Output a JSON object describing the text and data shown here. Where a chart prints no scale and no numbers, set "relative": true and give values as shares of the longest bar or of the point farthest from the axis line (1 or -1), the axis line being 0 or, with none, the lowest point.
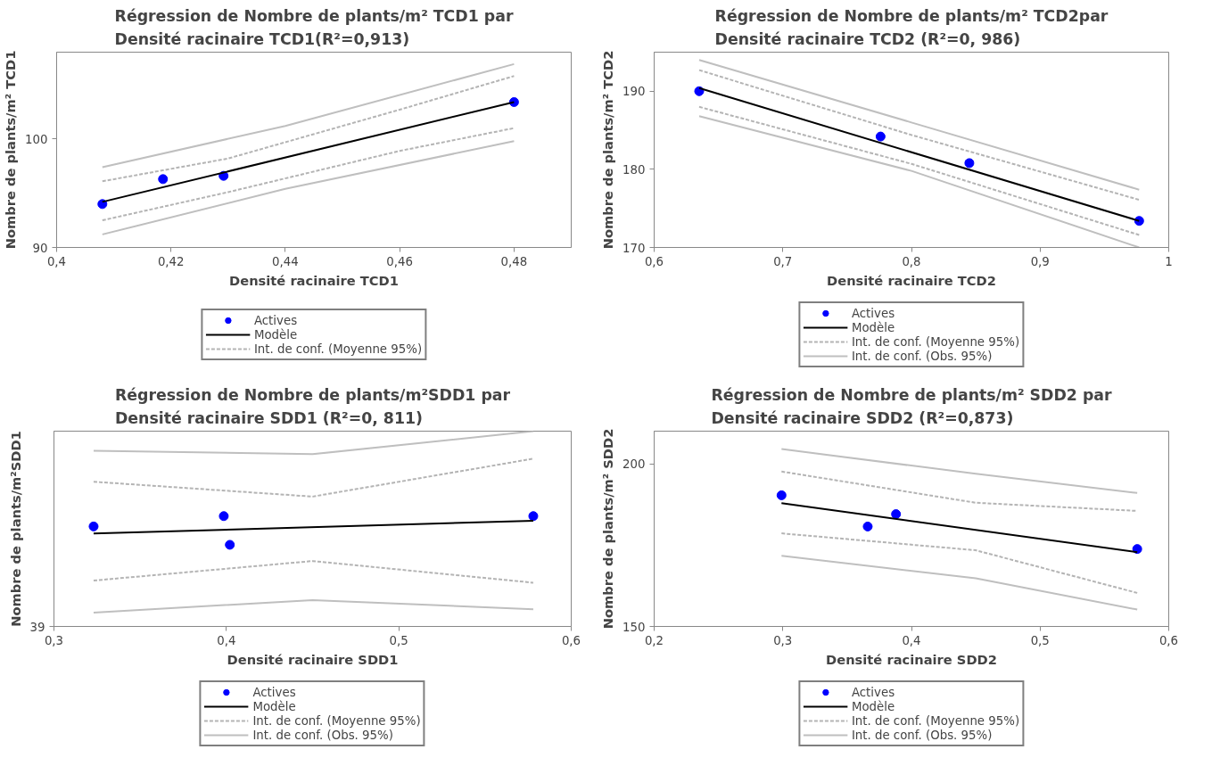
{
  "chart_data": [
    {
      "type": "scatter",
      "title": "Régression de Nombre de plants/m² TCD1 par\nDensité racinaire  TCD1(R²=0,913)",
      "xlabel": "Densité racinaire TCD1",
      "ylabel": "Nombre de plants/m² TCD1",
      "xlim": [
        0.4,
        0.49
      ],
      "xticks": [
        {
          "value": 0.4,
          "label": "0,4"
        },
        {
          "value": 0.42,
          "label": "0,42"
        },
        {
          "value": 0.44,
          "label": "0,44"
        },
        {
          "value": 0.46,
          "label": "0,46"
        },
        {
          "value": 0.48,
          "label": "0,48"
        }
      ],
      "ylim": [
        90,
        108
      ],
      "yticks": [
        90,
        100
      ],
      "grid": false,
      "legend": "bottom",
      "series": [
        {
          "name": "Actives",
          "marker": "circle",
          "color": "#0000ff",
          "x": [
            0.408,
            0.4186,
            0.4292,
            0.48
          ],
          "values": [
            94.0,
            96.3,
            96.6,
            103.4
          ]
        },
        {
          "name": "Modèle",
          "type": "line",
          "line_style": "solid",
          "color": "#000000",
          "x": [
            0.408,
            0.48
          ],
          "values": [
            94.2,
            103.4
          ]
        },
        {
          "name": "Int. de conf. (Moyenne 95%)",
          "type": "line",
          "line_style": "dashed",
          "color": "#b4b4b4",
          "x": [
            0.408,
            0.43,
            0.46,
            0.48
          ],
          "values": [
            96.1,
            98.2,
            102.7,
            105.8
          ]
        },
        {
          "type": "line",
          "line_style": "dashed",
          "color": "#b4b4b4",
          "x": [
            0.408,
            0.43,
            0.46,
            0.48
          ],
          "values": [
            92.5,
            95.1,
            98.9,
            101.0
          ]
        },
        {
          "type": "line",
          "line_style": "solid",
          "color": "#bfbfbf",
          "x": [
            0.408,
            0.44,
            0.48
          ],
          "values": [
            97.4,
            101.2,
            106.9
          ]
        },
        {
          "type": "line",
          "line_style": "solid",
          "color": "#bfbfbf",
          "x": [
            0.408,
            0.44,
            0.48
          ],
          "values": [
            91.2,
            95.4,
            99.8
          ]
        }
      ]
    },
    {
      "type": "scatter",
      "title": "Régression de Nombre de plants/m² TCD2par\nDensité racinaire TCD2 (R²=0, 986)",
      "xlabel": "Densité racinaire TCD2",
      "ylabel": "Nombre de plants/m² TCD2",
      "xlim": [
        0.6,
        1
      ],
      "xticks": [
        {
          "value": 0.6,
          "label": "0,6"
        },
        {
          "value": 0.7,
          "label": "0,7"
        },
        {
          "value": 0.8,
          "label": "0,8"
        },
        {
          "value": 0.9,
          "label": "0,9"
        },
        1
      ],
      "ylim": [
        170,
        195
      ],
      "yticks": [
        170,
        180,
        190
      ],
      "grid": false,
      "legend": "bottom",
      "series": [
        {
          "name": "Actives",
          "marker": "circle",
          "color": "#0000ff",
          "x": [
            0.635,
            0.776,
            0.845,
            0.977
          ],
          "values": [
            190.0,
            184.2,
            180.8,
            173.4
          ]
        },
        {
          "name": "Modèle",
          "type": "line",
          "line_style": "solid",
          "color": "#000000",
          "x": [
            0.635,
            0.977
          ],
          "values": [
            190.4,
            173.4
          ]
        },
        {
          "name": "Int. de conf. (Moyenne 95%)",
          "type": "line",
          "line_style": "dashed",
          "color": "#b4b4b4",
          "x": [
            0.635,
            0.8,
            0.977
          ],
          "values": [
            192.7,
            184.4,
            176.1
          ]
        },
        {
          "type": "line",
          "line_style": "dashed",
          "color": "#b4b4b4",
          "x": [
            0.635,
            0.8,
            0.977
          ],
          "values": [
            188.0,
            180.7,
            171.6
          ]
        },
        {
          "name": "Int. de conf. (Obs. 95%)",
          "type": "line",
          "line_style": "solid",
          "color": "#bfbfbf",
          "x": [
            0.635,
            0.8,
            0.977
          ],
          "values": [
            194.0,
            186.0,
            177.4
          ]
        },
        {
          "type": "line",
          "line_style": "solid",
          "color": "#bfbfbf",
          "x": [
            0.635,
            0.8,
            0.977
          ],
          "values": [
            186.8,
            179.8,
            170.0
          ]
        }
      ]
    },
    {
      "type": "scatter",
      "title": "Régression de Nombre de plants/m²SDD1 par\nDensité racinaire  SDD1 (R²=0, 811)",
      "xlabel": "Densité racinaire SDD1",
      "ylabel": "Nombre de plants/m²SDD1",
      "xlim": [
        0.3,
        0.6
      ],
      "xticks": [
        {
          "value": 0.3,
          "label": "0,3"
        },
        {
          "value": 0.4,
          "label": "0,4"
        },
        {
          "value": 0.5,
          "label": "0,5"
        },
        {
          "value": 0.6,
          "label": "0,6"
        }
      ],
      "relative": true,
      "annotations": [
        "39"
      ],
      "grid": false,
      "legend": "bottom",
      "series": [
        {
          "name": "Actives",
          "marker": "circle",
          "color": "#0000ff",
          "x": [
            0.323,
            0.3985,
            0.402,
            0.578
          ],
          "values": [
            0.512,
            0.565,
            0.418,
            0.565
          ]
        },
        {
          "name": "Modèle",
          "type": "line",
          "line_style": "solid",
          "color": "#000000",
          "x": [
            0.323,
            0.578
          ],
          "values": [
            0.476,
            0.541
          ]
        },
        {
          "name": "Int. de conf. (Moyenne 95%)",
          "type": "line",
          "line_style": "dashed",
          "color": "#b4b4b4",
          "x": [
            0.323,
            0.45,
            0.578
          ],
          "values": [
            0.741,
            0.665,
            0.859
          ]
        },
        {
          "type": "line",
          "line_style": "dashed",
          "color": "#b4b4b4",
          "x": [
            0.323,
            0.45,
            0.578
          ],
          "values": [
            0.235,
            0.335,
            0.224
          ]
        },
        {
          "name": "Int. de conf. (Obs. 95%)",
          "type": "line",
          "line_style": "solid",
          "color": "#bfbfbf",
          "x": [
            0.323,
            0.45,
            0.578
          ],
          "values": [
            0.9,
            0.882,
            1.0
          ]
        },
        {
          "type": "line",
          "line_style": "solid",
          "color": "#bfbfbf",
          "x": [
            0.323,
            0.45,
            0.578
          ],
          "values": [
            0.071,
            0.135,
            0.088
          ]
        }
      ]
    },
    {
      "type": "scatter",
      "title": "Régression de Nombre de plants/m² SDD2 par\nDensité racinaire SDD2 (R²=0,873)",
      "xlabel": "Densité racinaire SDD2",
      "ylabel": "Nombre de plants/m² SDD2",
      "xlim": [
        0.2,
        0.6
      ],
      "xticks": [
        {
          "value": 0.2,
          "label": "0,2"
        },
        {
          "value": 0.3,
          "label": "0,3"
        },
        {
          "value": 0.4,
          "label": "0,4"
        },
        {
          "value": 0.5,
          "label": "0,5"
        },
        {
          "value": 0.6,
          "label": "0,6"
        }
      ],
      "ylim": [
        150,
        210
      ],
      "yticks": [
        150,
        200
      ],
      "grid": false,
      "legend": "bottom",
      "series": [
        {
          "name": "Actives",
          "marker": "circle",
          "color": "#0000ff",
          "x": [
            0.299,
            0.366,
            0.388,
            0.5755
          ],
          "values": [
            190.3,
            180.7,
            184.5,
            173.8
          ]
        },
        {
          "name": "Modèle",
          "type": "line",
          "line_style": "solid",
          "color": "#000000",
          "x": [
            0.299,
            0.5755
          ],
          "values": [
            187.9,
            172.8
          ]
        },
        {
          "name": "Int. de conf. (Moyenne 95%)",
          "type": "line",
          "line_style": "dashed",
          "color": "#b4b4b4",
          "x": [
            0.299,
            0.45,
            0.5755
          ],
          "values": [
            197.6,
            188.0,
            185.5
          ]
        },
        {
          "type": "line",
          "line_style": "dashed",
          "color": "#b4b4b4",
          "x": [
            0.299,
            0.45,
            0.5755
          ],
          "values": [
            178.6,
            173.4,
            160.3
          ]
        },
        {
          "name": "Int. de conf. (Obs. 95%)",
          "type": "line",
          "line_style": "solid",
          "color": "#bfbfbf",
          "x": [
            0.299,
            0.45,
            0.5755
          ],
          "values": [
            204.5,
            196.9,
            191.0
          ]
        },
        {
          "type": "line",
          "line_style": "solid",
          "color": "#bfbfbf",
          "x": [
            0.299,
            0.45,
            0.5755
          ],
          "values": [
            171.7,
            164.8,
            155.2
          ]
        }
      ]
    }
  ]
}
